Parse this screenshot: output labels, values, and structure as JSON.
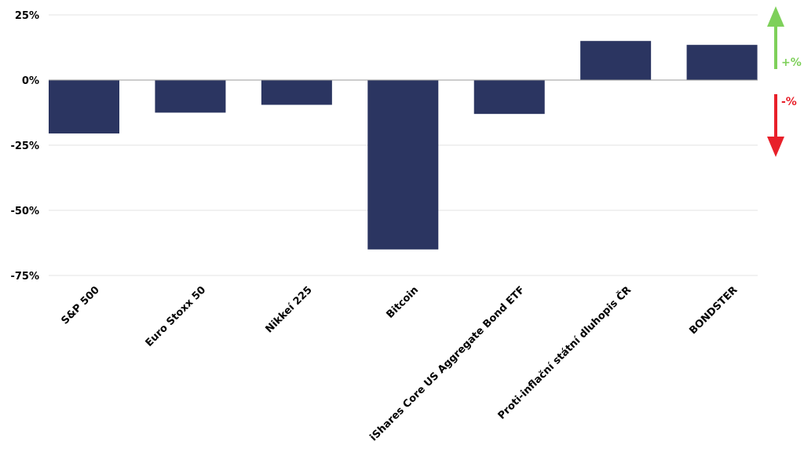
{
  "chart_data": {
    "type": "bar",
    "categories": [
      "S&P 500",
      "Euro Stoxx 50",
      "Nikkeí 225",
      "Bitcoin",
      "iShares Core US Aggregate Bond ETF",
      "Proti-inflační státní dluhopis ČR",
      "BONDSTER"
    ],
    "series": [
      {
        "values": [
          -20.5,
          -12.5,
          -9.5,
          -65,
          -13,
          15,
          13.5
        ],
        "color": "#2b3561"
      }
    ],
    "ylim": [
      -75,
      25
    ],
    "yticks": [
      25,
      0,
      -25,
      -50,
      -75
    ],
    "ytick_labels": [
      "25%",
      "0%",
      "-25%",
      "-50%",
      "-75%"
    ],
    "grid": true,
    "title": "",
    "xlabel": "",
    "ylabel": ""
  },
  "indicator": {
    "up_label": "+%",
    "down_label": "-%",
    "up_color": "#7ed05a",
    "down_color": "#e8202a"
  },
  "colors": {
    "bar": "#2b3561",
    "grid": "#e3e3e3",
    "zero_line": "#9a9a9a"
  }
}
